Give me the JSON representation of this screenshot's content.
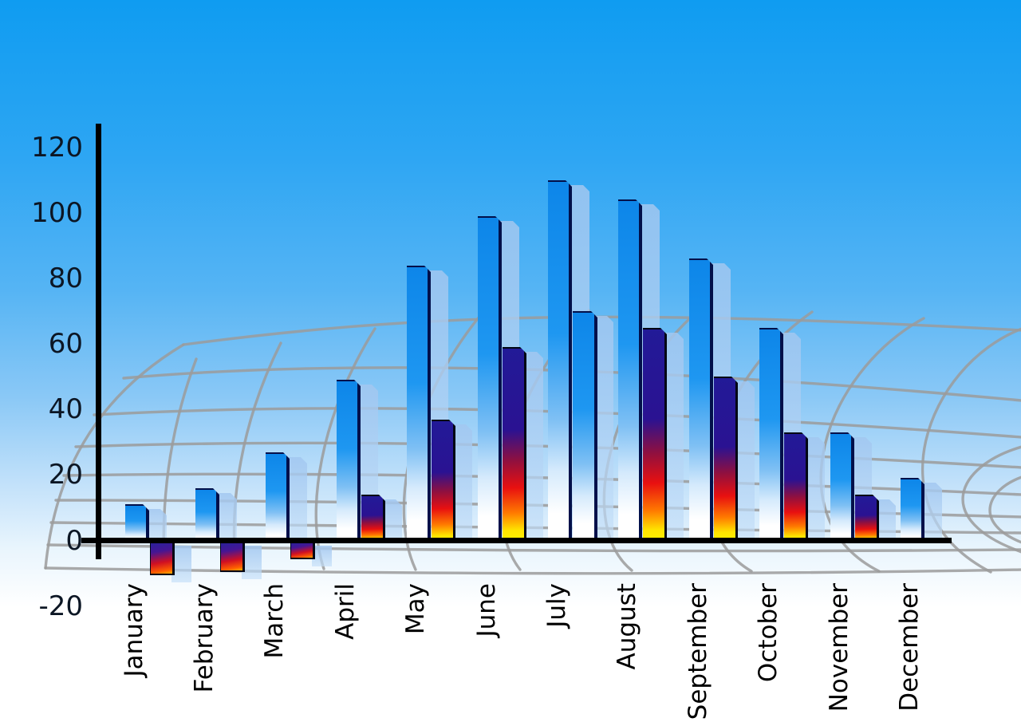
{
  "y_axis": {
    "ticks": [
      "120",
      "100",
      "80",
      "60",
      "40",
      "20",
      "0",
      "-20"
    ],
    "tick_values": [
      120,
      100,
      80,
      60,
      40,
      20,
      0,
      -20
    ],
    "label_color": "#0c1624"
  },
  "x_axis": {
    "labels": [
      "January",
      "February",
      "March",
      "April",
      "May",
      "June",
      "July",
      "August",
      "September",
      "October",
      "November",
      "December"
    ],
    "label_color": "#000000"
  },
  "chart_data": {
    "type": "bar",
    "title": "",
    "categories": [
      "January",
      "February",
      "March",
      "April",
      "May",
      "June",
      "July",
      "August",
      "September",
      "October",
      "November",
      "December"
    ],
    "series": [
      {
        "name": "primary-blue-bars",
        "values": [
          11,
          16,
          27,
          49,
          84,
          99,
          110,
          104,
          86,
          65,
          33,
          19
        ],
        "style": "blue"
      },
      {
        "name": "secondary-bars",
        "values": [
          -10,
          -9,
          -5,
          14,
          37,
          59,
          70,
          65,
          50,
          33,
          14,
          null
        ],
        "styles": [
          "negative",
          "negative",
          "negative",
          "rainbow",
          "rainbow",
          "rainbow",
          "blue",
          "rainbow",
          "rainbow",
          "rainbow",
          "rainbow",
          null
        ]
      }
    ],
    "ylim": [
      -20,
      120
    ],
    "grid": "curved-perspective-gray-grid",
    "legend": "none",
    "xlabel": "",
    "ylabel": ""
  },
  "colors": {
    "sky_top": "#0f9cf1",
    "sky_bottom": "#ffffff",
    "bar_blue": "#1e97f1",
    "bar_blue_fade": "#ffffff",
    "bar_shadow": "#a8cbf2",
    "rainbow_navy": "#221a97",
    "rainbow_red": "#e81010",
    "rainbow_yellow": "#ffe400",
    "negative_orange": "#ff5f00",
    "axis": "#000000",
    "grid_line": "#9b9b9b"
  }
}
